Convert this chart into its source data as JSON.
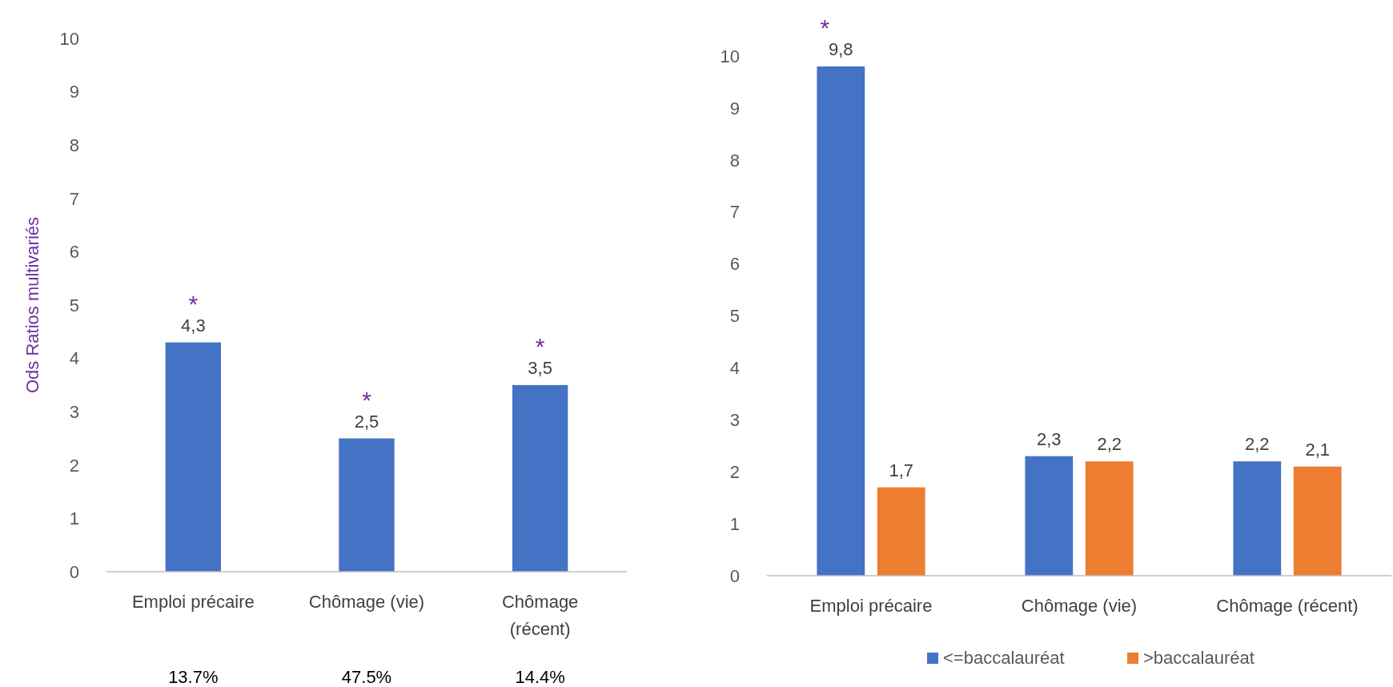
{
  "chart_data": [
    {
      "type": "bar",
      "ylabel": "Ods Ratios multivariés",
      "categories": [
        "Emploi précaire",
        "Chômage (vie)",
        "Chômage (récent)"
      ],
      "values": [
        4.3,
        2.5,
        3.5
      ],
      "value_labels": [
        "4,3",
        "2,5",
        "3,5"
      ],
      "color": "#4472c4",
      "ylim": [
        0,
        10
      ],
      "yticks": [
        0,
        1,
        2,
        3,
        4,
        5,
        6,
        7,
        8,
        9,
        10
      ],
      "grid": false,
      "annotations": [
        "*",
        "*",
        "*",
        "13.7%",
        "47.5%",
        "14.4%"
      ]
    },
    {
      "type": "bar",
      "categories": [
        "Emploi précaire",
        "Chômage (vie)",
        "Chômage (récent)"
      ],
      "series": [
        {
          "name": "<=baccalauréat",
          "color": "#4472c4",
          "values": [
            9.8,
            2.3,
            2.2
          ],
          "value_labels": [
            "9,8",
            "2,3",
            "2,2"
          ]
        },
        {
          "name": ">baccalauréat",
          "color": "#ed7d31",
          "values": [
            1.7,
            2.2,
            2.1
          ],
          "value_labels": [
            "1,7",
            "2,2",
            "2,1"
          ]
        }
      ],
      "ylim": [
        0,
        10
      ],
      "yticks": [
        0,
        1,
        2,
        3,
        4,
        5,
        6,
        7,
        8,
        9,
        10
      ],
      "grid": false,
      "legend": "bottom",
      "annotations": [
        "*"
      ]
    }
  ]
}
